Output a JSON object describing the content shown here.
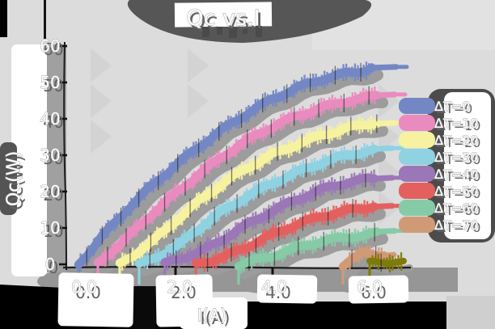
{
  "palette": {
    "canvas": "#dcdcdc",
    "page": "#000000",
    "shadow_gray": "#969696",
    "dark_blob": "#545454",
    "sticker": "#ffffff",
    "spine": "#1c1c1c"
  },
  "chart_data": {
    "type": "line",
    "title": "Qc vs.I",
    "xlabel": "I(A)",
    "ylabel": "Qc(W)",
    "xlim": [
      -0.3,
      6.9
    ],
    "ylim": [
      0,
      62
    ],
    "grid": false,
    "legend_position": "right",
    "xticks": {
      "labels": [
        "0.0",
        "2.0",
        "4.0",
        "6.0"
      ],
      "values": [
        0,
        2,
        4,
        6
      ]
    },
    "yticks": {
      "labels": [
        "0",
        "10",
        "20",
        "30",
        "40",
        "50",
        "60"
      ],
      "values": [
        0,
        10,
        20,
        30,
        40,
        50,
        60
      ]
    },
    "series": [
      {
        "label": "ΔT=0",
        "color": "#7487c5",
        "x": [
          0,
          0.5,
          1,
          1.5,
          2,
          2.5,
          3,
          3.5,
          4,
          4.5,
          5,
          5.5,
          6.05
        ],
        "y": [
          0,
          7.7,
          14.8,
          21.4,
          27.3,
          32.7,
          37.5,
          41.7,
          45.3,
          48.3,
          50.8,
          52.6,
          54.0
        ]
      },
      {
        "label": "ΔT=10",
        "color": "#ea8bbf",
        "x": [
          0.4,
          1,
          1.5,
          2,
          2.5,
          3,
          3.5,
          4,
          4.5,
          5,
          5.5,
          6.15
        ],
        "y": [
          0,
          7.2,
          13.8,
          19.7,
          25.1,
          29.9,
          34.1,
          37.7,
          40.7,
          43.2,
          45.0,
          46.5
        ]
      },
      {
        "label": "ΔT=20",
        "color": "#f7f2a0",
        "x": [
          0.85,
          1.5,
          2,
          2.5,
          3,
          3.5,
          4,
          4.5,
          5,
          5.5,
          6.15
        ],
        "y": [
          0,
          6.2,
          12.1,
          17.5,
          22.3,
          26.5,
          30.1,
          33.1,
          35.6,
          37.4,
          39.0
        ]
      },
      {
        "label": "ΔT=30",
        "color": "#8fd2e2",
        "x": [
          1.25,
          2,
          2.5,
          3,
          3.5,
          4,
          4.5,
          5,
          5.5,
          6.1
        ],
        "y": [
          0,
          4.5,
          9.9,
          14.7,
          18.9,
          22.5,
          25.5,
          28.0,
          29.8,
          31.3
        ]
      },
      {
        "label": "ΔT=40",
        "color": "#9b77b8",
        "x": [
          1.78,
          2.5,
          3,
          3.5,
          4,
          4.5,
          5,
          5.5,
          6.1
        ],
        "y": [
          0,
          3.2,
          7.1,
          11.3,
          14.9,
          17.9,
          20.4,
          22.2,
          23.7
        ]
      },
      {
        "label": "ΔT=50",
        "color": "#e4605f",
        "x": [
          2.42,
          3,
          3.5,
          4,
          4.5,
          5,
          5.5,
          6.1
        ],
        "y": [
          0,
          2.2,
          5.2,
          8.3,
          10.9,
          13.0,
          14.6,
          16.1
        ]
      },
      {
        "label": "ΔT=60",
        "color": "#86cba7",
        "x": [
          3.3,
          4,
          4.5,
          5,
          5.5,
          6.15
        ],
        "y": [
          0,
          2.2,
          4.4,
          6.2,
          7.5,
          8.6
        ]
      },
      {
        "label": "ΔT=70",
        "color": "#d19a76",
        "x": [
          5.45,
          5.7,
          5.9,
          6.1,
          6.3
        ],
        "y": [
          0,
          2.0,
          3.2,
          3.0,
          2.7
        ]
      }
    ],
    "extra_segment": {
      "label": "",
      "color": "#7f7b08",
      "x": [
        6.0,
        6.7
      ],
      "y": [
        0.3,
        0.6
      ]
    }
  }
}
